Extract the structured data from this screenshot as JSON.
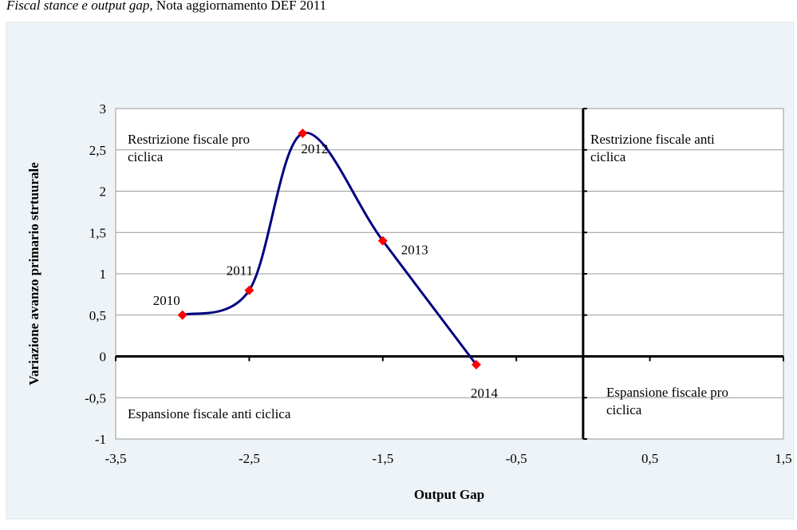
{
  "chart_data": {
    "type": "line",
    "caption_italic": "Fiscal stance e output gap,",
    "caption": "Nota aggiornamento DEF 2011",
    "xlabel": "Output Gap",
    "ylabel": "Variazione avanzo primario strtuurale",
    "x": [
      -3,
      -2.5,
      -2.1,
      -1.5,
      -0.8
    ],
    "series": [
      {
        "color": "#000080",
        "marker_color": "#ff0000",
        "values": [
          0.5,
          0.8,
          2.7,
          1.4,
          -0.1
        ]
      }
    ],
    "point_labels": [
      "2010",
      "2011",
      "2012",
      "2013",
      "2014"
    ],
    "annotations": [
      "Restrizione fiscale pro ciclica",
      "Restrizione fiscale anti ciclica",
      "Espansione fiscale anti ciclica",
      "Espansione fiscale pro ciclica"
    ],
    "xlim": [
      -3.5,
      1.5
    ],
    "xticks": [
      {
        "value": -3.5,
        "label": "-3,5"
      },
      {
        "value": -2.5,
        "label": "-2,5"
      },
      {
        "value": -1.5,
        "label": "-1,5"
      },
      {
        "value": -0.5,
        "label": "-0,5"
      },
      {
        "value": 0.5,
        "label": "0,5"
      },
      {
        "value": 1.5,
        "label": "1,5"
      }
    ],
    "ylim": [
      -1,
      3
    ],
    "yticks": [
      -1,
      {
        "value": -0.5,
        "label": "-0,5"
      },
      0,
      {
        "value": 0.5,
        "label": "0,5"
      },
      1,
      {
        "value": 1.5,
        "label": "1,5"
      },
      2,
      {
        "value": 2.5,
        "label": "2,5"
      },
      3
    ],
    "grid": true
  }
}
